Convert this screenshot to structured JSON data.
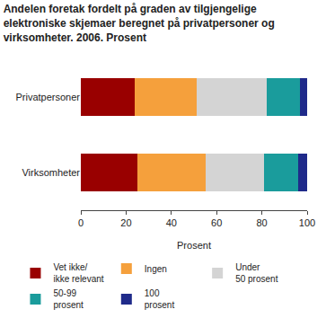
{
  "chart_data": {
    "type": "bar",
    "orientation": "horizontal",
    "stacked": true,
    "title": "Andelen foretak fordelt på graden av tilgjengelige\nelektroniske skjemaer beregnet på privatpersoner og\nvirksomheter. 2006. Prosent",
    "x_label": "Prosent",
    "categories": [
      "Privatpersoner",
      "Virksomheter"
    ],
    "series": [
      {
        "name": "Vet ikke/\nikke relevant",
        "color": "#990000",
        "values": [
          24,
          25
        ]
      },
      {
        "name": "Ingen",
        "color": "#f5a03c",
        "values": [
          27,
          30
        ]
      },
      {
        "name": "Under\n50 prosent",
        "color": "#d4d4d4",
        "values": [
          31,
          26
        ]
      },
      {
        "name": "50-99\nprosent",
        "color": "#1a9c9c",
        "values": [
          15,
          15
        ]
      },
      {
        "name": "100\nprosent",
        "color": "#1f2a8a",
        "values": [
          3,
          4
        ]
      }
    ],
    "xlim": [
      0,
      100
    ],
    "xticks": [
      0,
      20,
      40,
      60,
      80,
      100
    ],
    "grid": false,
    "legend": "bottom"
  }
}
